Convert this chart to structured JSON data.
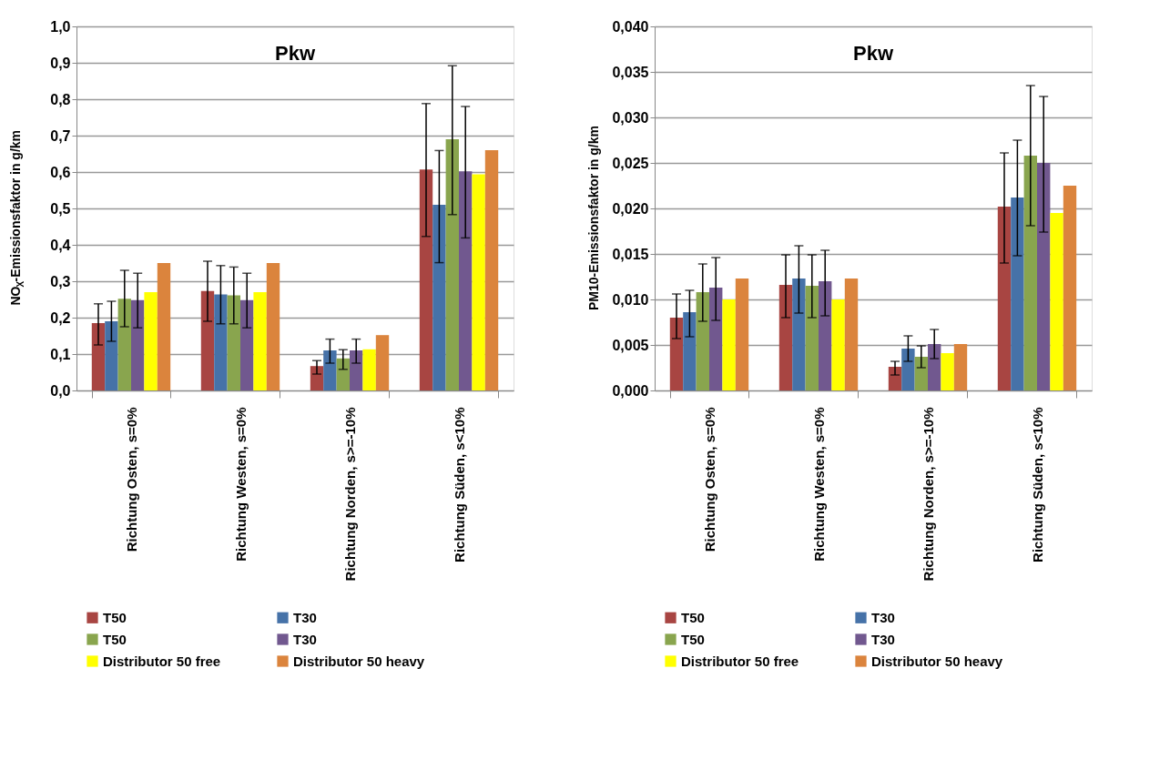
{
  "chart_data": [
    {
      "type": "bar",
      "title": "Pkw",
      "ylabel": "NO$_{X}$-Emissionsfaktor  in g/km",
      "categories": [
        "Richtung Osten,  s=0%",
        "Richtung Westen,  s=0%",
        "Richtung Norden,  s>=-10%",
        "Richtung Süden,  s<10%"
      ],
      "series": [
        {
          "name": "T50",
          "color": "#a84542",
          "values": [
            0.185,
            0.273,
            0.067,
            0.607
          ],
          "errors": [
            [
              0.125,
              0.238
            ],
            [
              0.19,
              0.355
            ],
            [
              0.045,
              0.082
            ],
            [
              0.423,
              0.788
            ]
          ]
        },
        {
          "name": "T30",
          "color": "#4672a8",
          "values": [
            0.19,
            0.264,
            0.11,
            0.51
          ],
          "errors": [
            [
              0.135,
              0.245
            ],
            [
              0.183,
              0.343
            ],
            [
              0.075,
              0.141
            ],
            [
              0.351,
              0.659
            ]
          ]
        },
        {
          "name": "T50",
          "color": "#89a54e",
          "values": [
            0.252,
            0.261,
            0.088,
            0.69
          ],
          "errors": [
            [
              0.175,
              0.33
            ],
            [
              0.183,
              0.339
            ],
            [
              0.058,
              0.112
            ],
            [
              0.483,
              0.892
            ]
          ]
        },
        {
          "name": "T30",
          "color": "#71588f",
          "values": [
            0.248,
            0.248,
            0.11,
            0.602
          ],
          "errors": [
            [
              0.172,
              0.322
            ],
            [
              0.172,
              0.322
            ],
            [
              0.075,
              0.141
            ],
            [
              0.419,
              0.78
            ]
          ]
        },
        {
          "name": "Distributor 50 free",
          "color": "#ffff00",
          "values": [
            0.27,
            0.27,
            0.113,
            0.594
          ]
        },
        {
          "name": "Distributor 50 heavy",
          "color": "#db843d",
          "values": [
            0.35,
            0.35,
            0.152,
            0.66
          ]
        }
      ],
      "ylim": [
        0,
        1
      ],
      "yticks": [
        {
          "value": 0,
          "label": "0,0"
        },
        {
          "value": 0.1,
          "label": "0,1"
        },
        {
          "value": 0.2,
          "label": "0,2"
        },
        {
          "value": 0.3,
          "label": "0,3"
        },
        {
          "value": 0.4,
          "label": "0,4"
        },
        {
          "value": 0.5,
          "label": "0,5"
        },
        {
          "value": 0.6,
          "label": "0,6"
        },
        {
          "value": 0.7,
          "label": "0,7"
        },
        {
          "value": 0.8,
          "label": "0,8"
        },
        {
          "value": 0.9,
          "label": "0,9"
        },
        {
          "value": 1,
          "label": "1,0"
        }
      ],
      "grid": "y",
      "legend": "bottom"
    },
    {
      "type": "bar",
      "title": "Pkw",
      "ylabel": "PM10-Emissionsfaktor  in g/km",
      "categories": [
        "Richtung Osten,  s=0%",
        "Richtung Westen,  s=0%",
        "Richtung Norden,  s>=-10%",
        "Richtung Süden,  s<10%"
      ],
      "series": [
        {
          "name": "T50",
          "color": "#a84542",
          "values": [
            0.008,
            0.0116,
            0.0026,
            0.0202
          ],
          "errors": [
            [
              0.0057,
              0.0106
            ],
            [
              0.008,
              0.0149
            ],
            [
              0.0017,
              0.0032
            ],
            [
              0.014,
              0.0261
            ]
          ]
        },
        {
          "name": "T30",
          "color": "#4672a8",
          "values": [
            0.0086,
            0.0123,
            0.0046,
            0.0212
          ],
          "errors": [
            [
              0.0059,
              0.011
            ],
            [
              0.0085,
              0.0159
            ],
            [
              0.0032,
              0.006
            ],
            [
              0.0148,
              0.0275
            ]
          ]
        },
        {
          "name": "T50",
          "color": "#89a54e",
          "values": [
            0.0108,
            0.0115,
            0.0037,
            0.0258
          ],
          "errors": [
            [
              0.0076,
              0.0139
            ],
            [
              0.008,
              0.0149
            ],
            [
              0.0025,
              0.0049
            ],
            [
              0.0181,
              0.0335
            ]
          ]
        },
        {
          "name": "T30",
          "color": "#71588f",
          "values": [
            0.0113,
            0.012,
            0.0051,
            0.025
          ],
          "errors": [
            [
              0.0077,
              0.0146
            ],
            [
              0.0082,
              0.0154
            ],
            [
              0.0035,
              0.0067
            ],
            [
              0.0174,
              0.0323
            ]
          ]
        },
        {
          "name": "Distributor 50 free",
          "color": "#ffff00",
          "values": [
            0.01,
            0.01,
            0.0041,
            0.0195
          ]
        },
        {
          "name": "Distributor 50 heavy",
          "color": "#db843d",
          "values": [
            0.0123,
            0.0123,
            0.0051,
            0.0225
          ]
        }
      ],
      "ylim": [
        0,
        0.04
      ],
      "yticks": [
        {
          "value": 0,
          "label": "0,000"
        },
        {
          "value": 0.005,
          "label": "0,005"
        },
        {
          "value": 0.01,
          "label": "0,010"
        },
        {
          "value": 0.015,
          "label": "0,015"
        },
        {
          "value": 0.02,
          "label": "0,020"
        },
        {
          "value": 0.025,
          "label": "0,025"
        },
        {
          "value": 0.03,
          "label": "0,030"
        },
        {
          "value": 0.035,
          "label": "0,035"
        },
        {
          "value": 0.04,
          "label": "0,040"
        }
      ],
      "grid": "y",
      "legend": "bottom"
    }
  ]
}
